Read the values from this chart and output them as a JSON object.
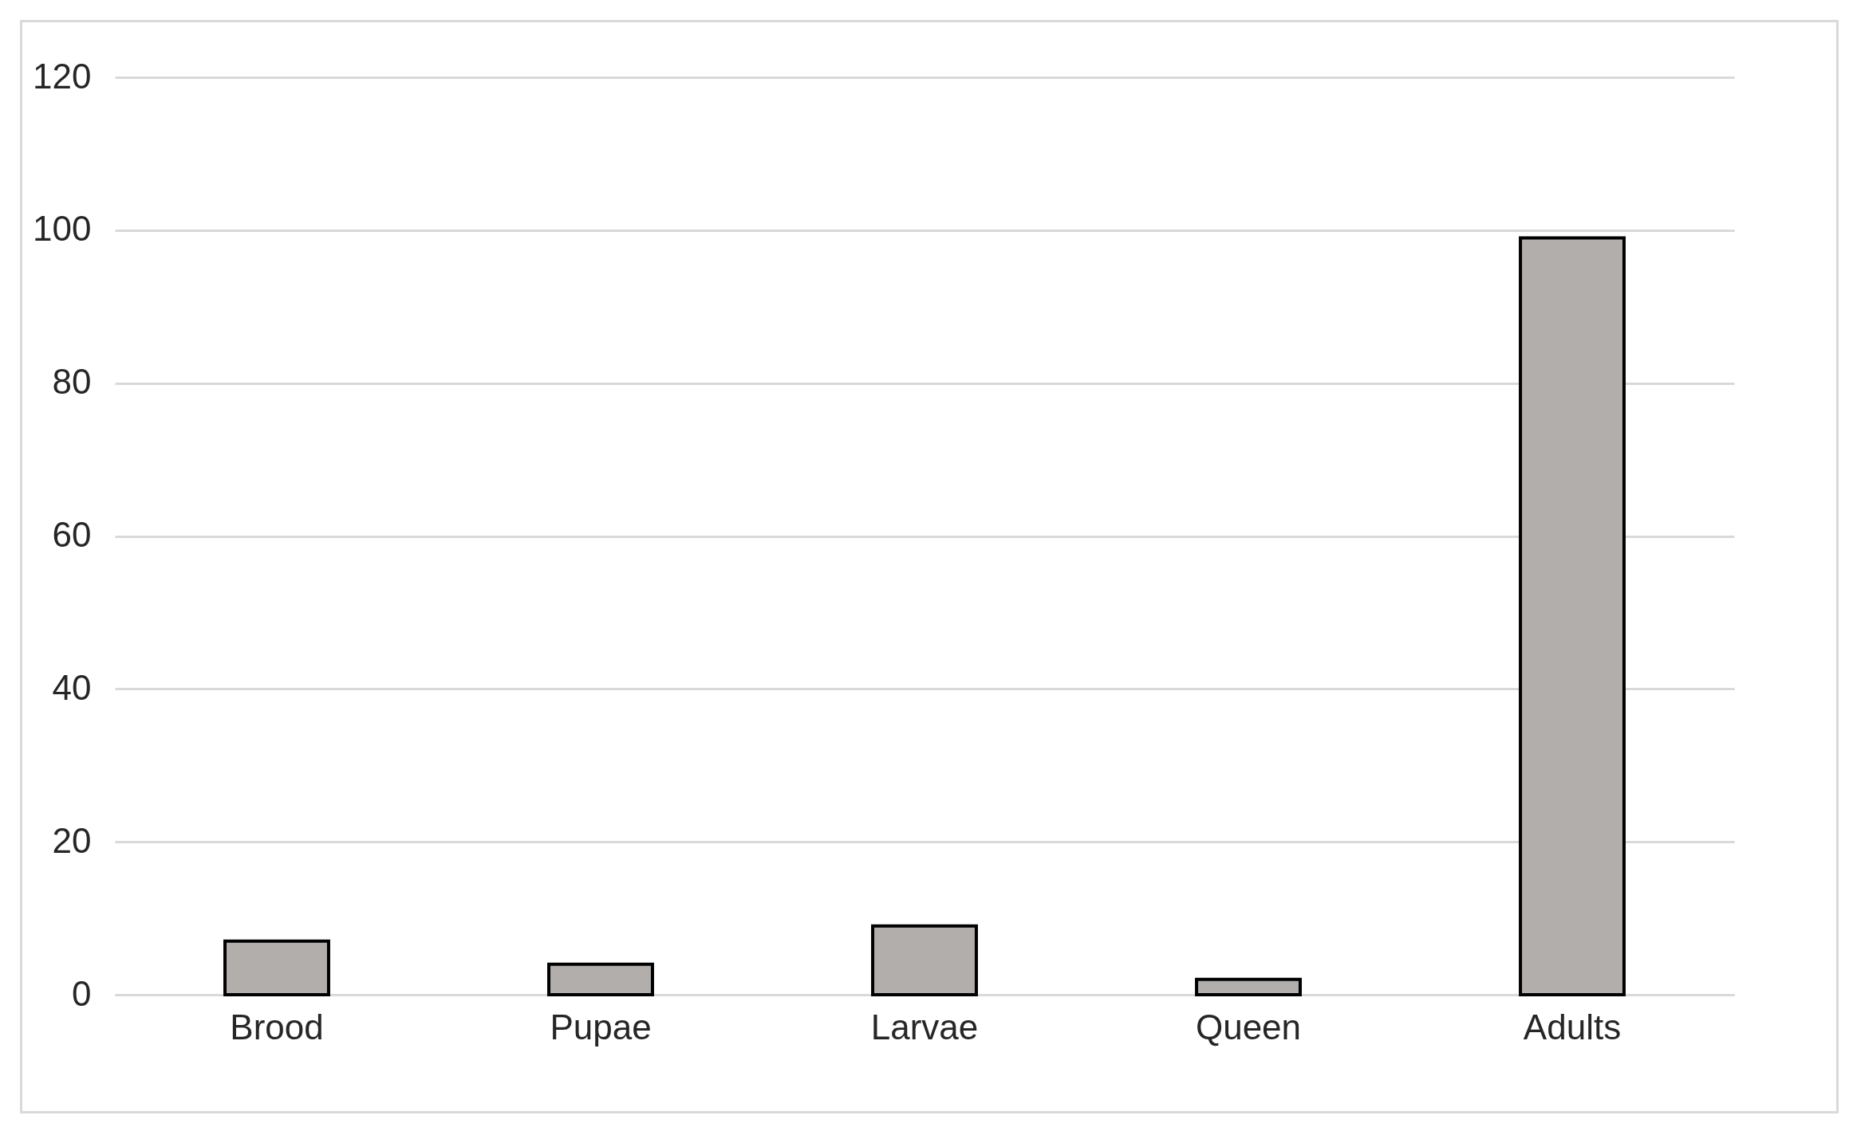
{
  "chart_data": {
    "type": "bar",
    "categories": [
      "Brood",
      "Pupae",
      "Larvae",
      "Queen",
      "Adults"
    ],
    "values": [
      7,
      4,
      9,
      2,
      99
    ],
    "color": "#b2aeab",
    "ylim": [
      0,
      120
    ],
    "yticks": [
      0,
      20,
      40,
      60,
      80,
      100,
      120
    ],
    "grid": "y"
  }
}
